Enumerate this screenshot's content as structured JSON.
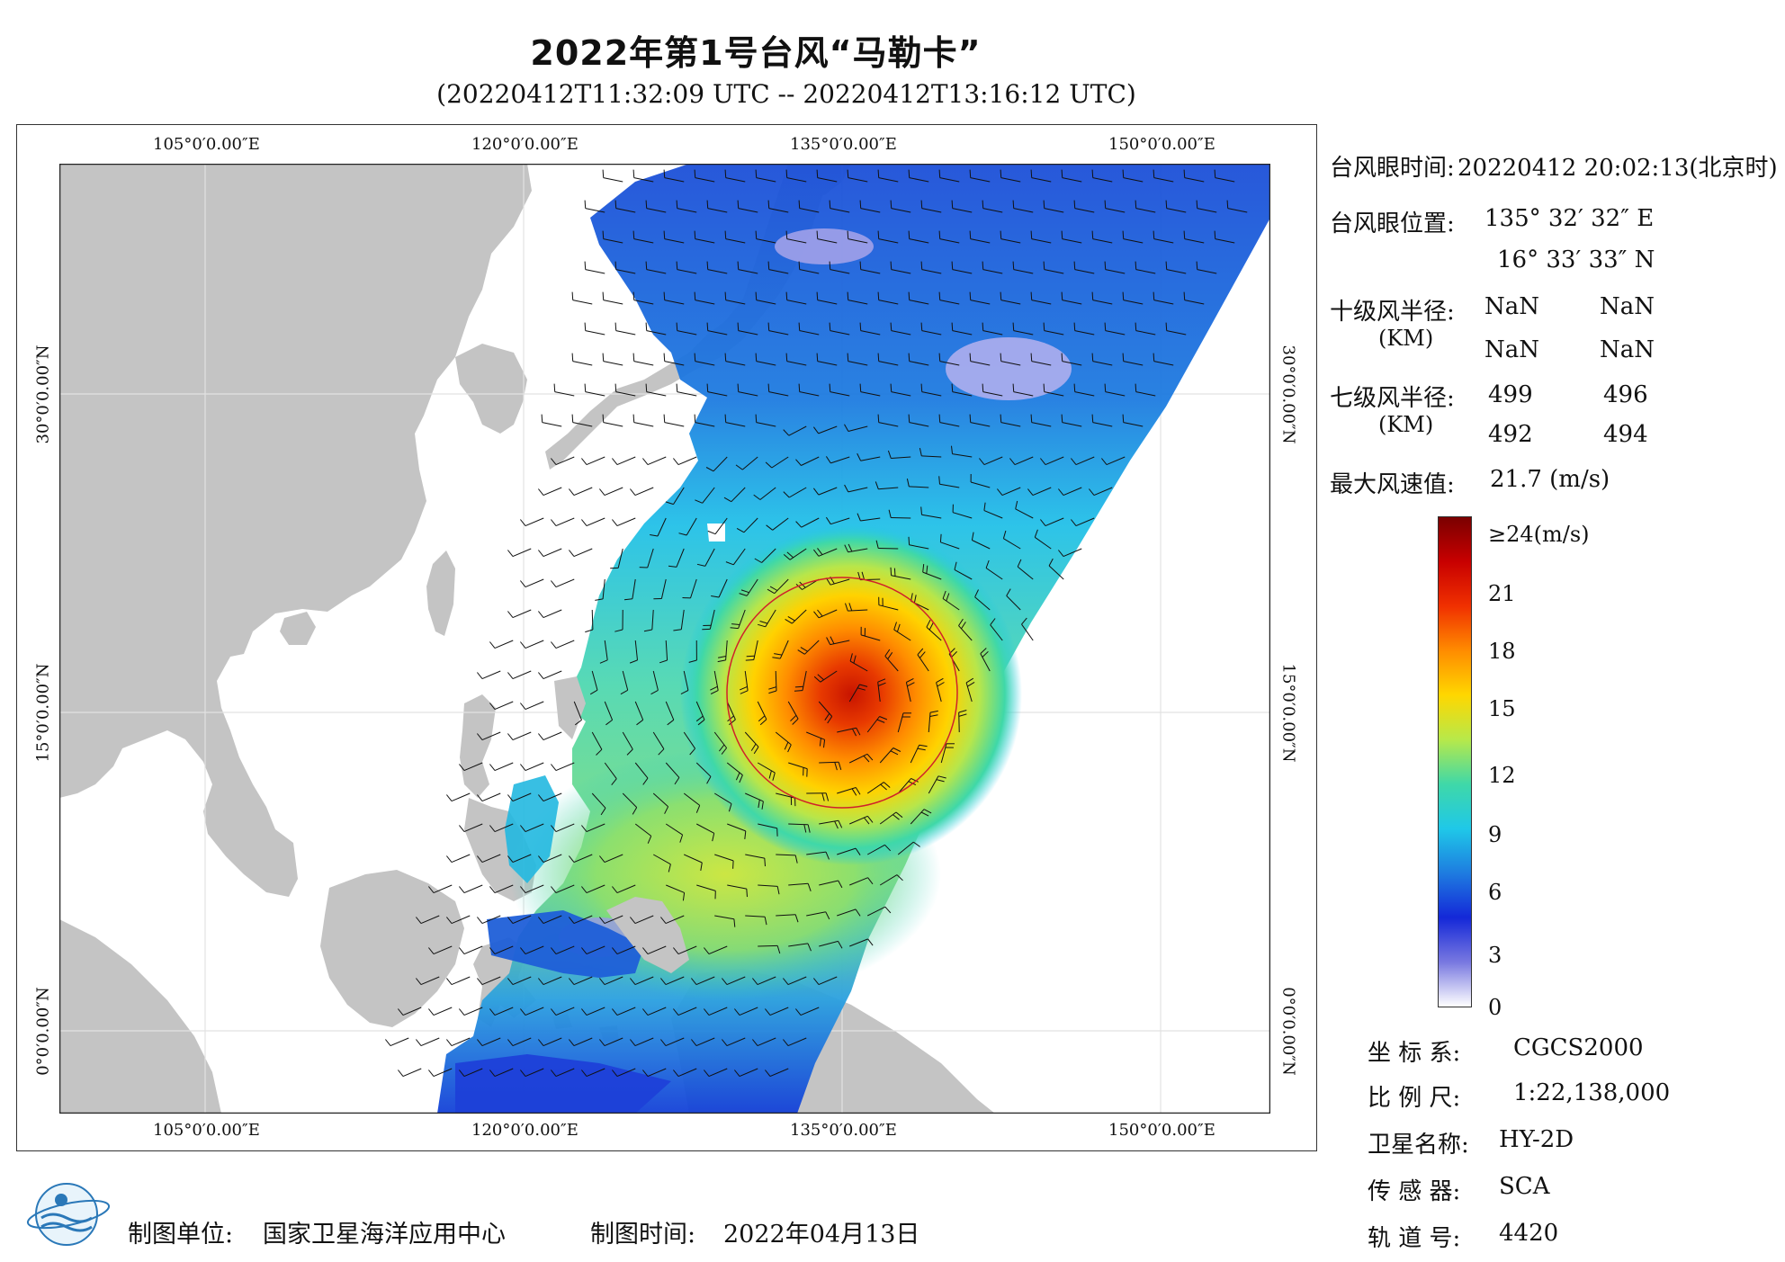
{
  "title": "2022年第1号台风“马勒卡”",
  "subtitle": "(20220412T11:32:09 UTC -- 20220412T13:16:12 UTC)",
  "map": {
    "lon_ticks": [
      "105°0′0.00″E",
      "120°0′0.00″E",
      "135°0′0.00″E",
      "150°0′0.00″E"
    ],
    "lat_ticks": [
      "30°0′0.00″N",
      "15°0′0.00″N",
      "0°0′0.00″N"
    ],
    "colors": {
      "land": "#c4c4c4",
      "sea": "#ffffff",
      "grid": "#e2e2e2",
      "radius_circle": "#d0202a",
      "barb": "#111111"
    }
  },
  "info": {
    "eye_time_label": "台风眼时间:",
    "eye_time_value": "20220412 20:02:13(北京时)",
    "eye_pos_label": "台风眼位置:",
    "eye_lon": "135° 32′ 32″ E",
    "eye_lat": "16° 33′ 33″ N",
    "r10_label": "十级风半径:",
    "r10_unit": "(KM)",
    "r10_values": [
      "NaN",
      "NaN",
      "NaN",
      "NaN"
    ],
    "r7_label": "七级风半径:",
    "r7_unit": "(KM)",
    "r7_values": [
      "499",
      "496",
      "492",
      "494"
    ],
    "max_wind_label": "最大风速值:",
    "max_wind_value": "21.7 (m/s)"
  },
  "colorbar": {
    "labels": [
      "≥24(m/s)",
      "21",
      "18",
      "15",
      "12",
      "9",
      "6",
      "3",
      "0"
    ],
    "stops": [
      "#7a0000",
      "#c80000",
      "#f03000",
      "#ff8c00",
      "#ffd700",
      "#b7e94a",
      "#3fd8a8",
      "#1fc8e8",
      "#1e7ce0",
      "#1428d8",
      "#7878e0",
      "#ffffff"
    ]
  },
  "meta": {
    "crs_label": "坐 标 系:",
    "crs_value": "CGCS2000",
    "scale_label": "比 例 尺:",
    "scale_value": "1:22,138,000",
    "sat_label": "卫星名称:",
    "sat_value": "HY-2D",
    "sensor_label": "传 感 器:",
    "sensor_value": "SCA",
    "orbit_label": "轨 道 号:",
    "orbit_value": "4420"
  },
  "footer": {
    "org_label": "制图单位:",
    "org_value": "国家卫星海洋应用中心",
    "date_label": "制图时间:",
    "date_value": "2022年04月13日"
  }
}
